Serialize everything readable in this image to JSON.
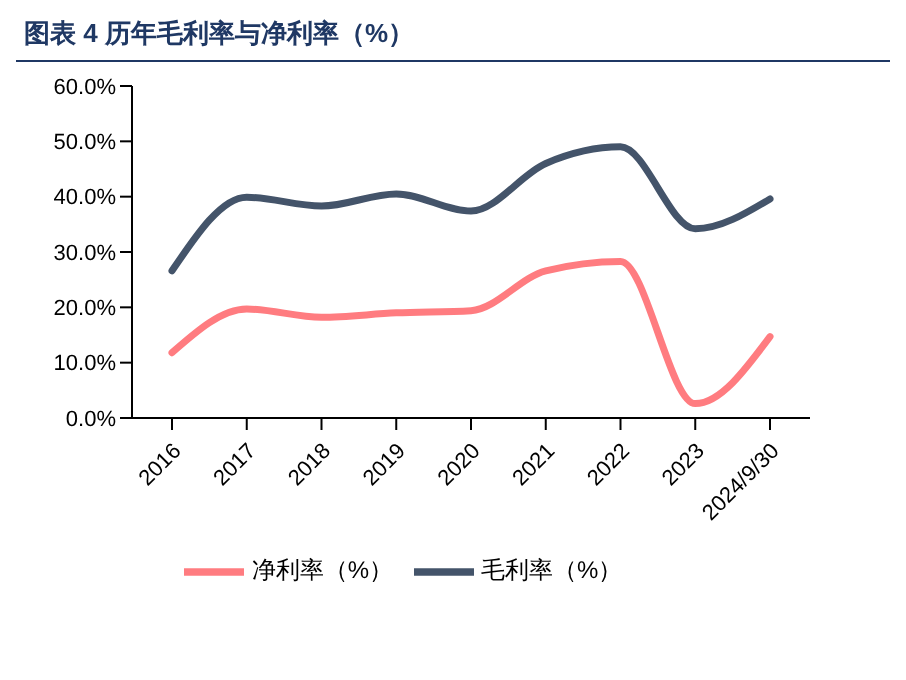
{
  "chart_data": {
    "type": "line",
    "title": "图表 4 历年毛利率与净利率（%）",
    "categories": [
      "2016",
      "2017",
      "2018",
      "2019",
      "2020",
      "2021",
      "2022",
      "2023",
      "2024/9/30"
    ],
    "series": [
      {
        "name": "毛利率（%）",
        "color": "#44546a",
        "values": [
          26.6,
          39.9,
          38.3,
          40.5,
          37.4,
          46,
          49,
          34.2,
          39.6
        ]
      },
      {
        "name": "净利率（%）",
        "color": "#ff7c80",
        "values": [
          11.8,
          19.7,
          18.2,
          19,
          19.4,
          26.6,
          28.3,
          2.6,
          14.7
        ]
      }
    ],
    "ylim": [
      0,
      60
    ],
    "yticks": [
      {
        "value": 0,
        "label": "0.0%"
      },
      {
        "value": 10,
        "label": "10.0%"
      },
      {
        "value": 20,
        "label": "20.0%"
      },
      {
        "value": 30,
        "label": "30.0%"
      },
      {
        "value": 40,
        "label": "40.0%"
      },
      {
        "value": 50,
        "label": "50.0%"
      },
      {
        "value": 60,
        "label": "60.0%"
      }
    ],
    "grid": false,
    "legend": "bottom",
    "marker": "none",
    "line_style": "solid"
  }
}
